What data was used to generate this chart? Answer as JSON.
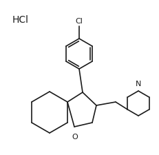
{
  "background_color": "#ffffff",
  "hcl_text": "HCl",
  "hcl_fontsize": 10,
  "line_color": "#1a1a1a",
  "line_width": 1.2,
  "cl_text": "Cl",
  "cl_fontsize": 8,
  "o_text": "O",
  "o_fontsize": 8,
  "n_text": "N",
  "n_fontsize": 8
}
